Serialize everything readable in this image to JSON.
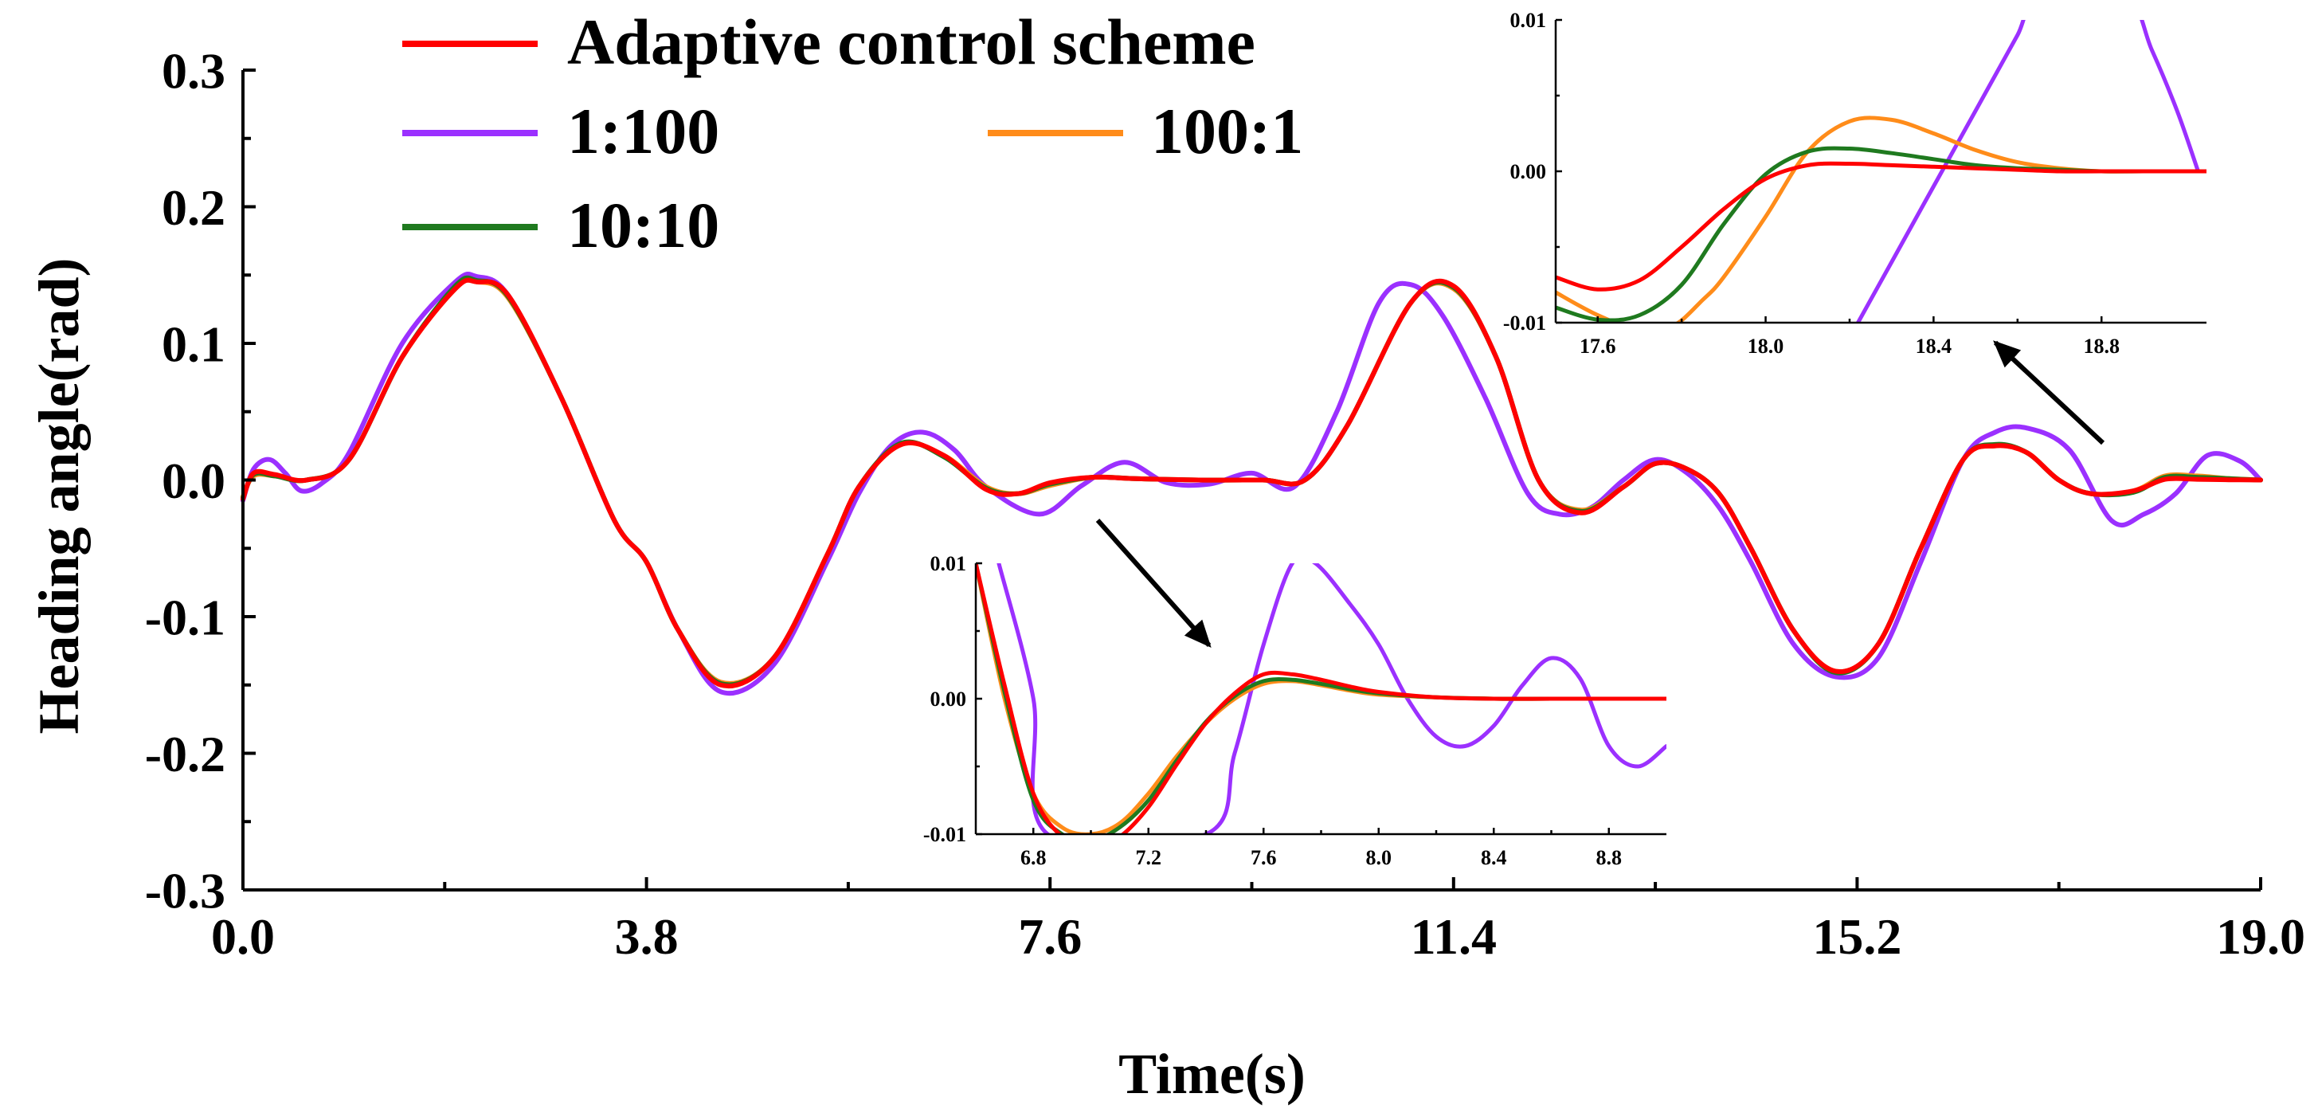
{
  "chart_data": [
    {
      "id": "main",
      "type": "line",
      "title": "",
      "xlabel": "Time(s)",
      "ylabel": "Heading angle(rad)",
      "xlim": [
        0,
        19
      ],
      "ylim": [
        -0.3,
        0.3
      ],
      "xticks": [
        0,
        3.8,
        7.6,
        11.4,
        15.2,
        19.0
      ],
      "xtick_labels": [
        "0.0",
        "3.8",
        "7.6",
        "11.4",
        "15.2",
        "19.0"
      ],
      "yticks": [
        -0.3,
        -0.2,
        -0.1,
        0.0,
        0.1,
        0.2,
        0.3
      ],
      "ytick_labels": [
        "-0.3",
        "-0.2",
        "-0.1",
        "0.0",
        "0.1",
        "0.2",
        "0.3"
      ],
      "legend": {
        "placement": "top-left",
        "entries": [
          {
            "name": "Adaptive control scheme",
            "color": "#ff0000"
          },
          {
            "name": "1:100",
            "color": "#9b30ff"
          },
          {
            "name": "100:1",
            "color": "#ff8c1a"
          },
          {
            "name": "10:10",
            "color": "#1f7a1f"
          }
        ]
      },
      "series": [
        {
          "name": "1:100",
          "color": "#9b30ff",
          "x": [
            0,
            0.1,
            0.25,
            0.4,
            0.55,
            0.75,
            1.0,
            1.5,
            2.0,
            2.2,
            2.5,
            3.0,
            3.5,
            3.8,
            4.1,
            4.5,
            5.0,
            5.5,
            5.8,
            6.1,
            6.4,
            6.7,
            7.0,
            7.5,
            7.9,
            8.3,
            8.7,
            9.1,
            9.5,
            9.9,
            10.3,
            10.7,
            11.0,
            11.3,
            11.7,
            12.1,
            12.4,
            12.7,
            13.0,
            13.3,
            13.6,
            13.9,
            14.2,
            14.6,
            15.0,
            15.4,
            15.8,
            16.2,
            16.5,
            16.8,
            17.2,
            17.6,
            17.9,
            18.2,
            18.5,
            18.8,
            19.0
          ],
          "y": [
            -0.015,
            0.008,
            0.015,
            0.005,
            -0.008,
            -0.002,
            0.02,
            0.1,
            0.145,
            0.149,
            0.135,
            0.06,
            -0.03,
            -0.06,
            -0.11,
            -0.155,
            -0.135,
            -0.06,
            -0.01,
            0.025,
            0.035,
            0.022,
            -0.005,
            -0.025,
            -0.004,
            0.013,
            -0.002,
            -0.003,
            0.005,
            -0.005,
            0.05,
            0.13,
            0.143,
            0.12,
            0.06,
            -0.01,
            -0.025,
            -0.02,
            0.0,
            0.015,
            0.005,
            -0.02,
            -0.06,
            -0.12,
            -0.144,
            -0.13,
            -0.06,
            0.015,
            0.035,
            0.038,
            0.022,
            -0.03,
            -0.025,
            -0.01,
            0.018,
            0.014,
            0.0
          ]
        },
        {
          "name": "100:1",
          "color": "#ff8c1a",
          "x": [
            0,
            0.1,
            0.3,
            0.6,
            1.0,
            1.5,
            2.0,
            2.2,
            2.5,
            3.0,
            3.5,
            3.8,
            4.1,
            4.5,
            5.0,
            5.5,
            5.8,
            6.2,
            6.6,
            7.0,
            7.3,
            7.6,
            8.0,
            8.4,
            9.0,
            9.6,
            10.0,
            10.4,
            11.0,
            11.4,
            11.8,
            12.2,
            12.6,
            13.0,
            13.3,
            13.6,
            13.9,
            14.2,
            14.6,
            15.0,
            15.4,
            15.8,
            16.2,
            16.5,
            16.8,
            17.1,
            17.4,
            17.8,
            18.1,
            18.4,
            18.7,
            19.0
          ],
          "y": [
            -0.012,
            0.003,
            0.003,
            0.0,
            0.015,
            0.09,
            0.14,
            0.145,
            0.133,
            0.06,
            -0.03,
            -0.06,
            -0.11,
            -0.148,
            -0.13,
            -0.055,
            -0.005,
            0.026,
            0.018,
            -0.005,
            -0.01,
            -0.004,
            0.002,
            0.001,
            0.0,
            0.0,
            0.0,
            0.04,
            0.13,
            0.14,
            0.09,
            0.0,
            -0.022,
            -0.005,
            0.012,
            0.008,
            -0.01,
            -0.05,
            -0.11,
            -0.14,
            -0.12,
            -0.05,
            0.015,
            0.025,
            0.02,
            0.0,
            -0.01,
            -0.008,
            0.003,
            0.003,
            0.001,
            0.0
          ]
        },
        {
          "name": "10:10",
          "color": "#1f7a1f",
          "x": [
            0,
            0.1,
            0.3,
            0.6,
            1.0,
            1.5,
            2.0,
            2.2,
            2.5,
            3.0,
            3.5,
            3.8,
            4.1,
            4.5,
            5.0,
            5.5,
            5.8,
            6.2,
            6.6,
            7.0,
            7.3,
            7.6,
            8.0,
            8.4,
            9.0,
            9.6,
            10.0,
            10.4,
            11.0,
            11.4,
            11.8,
            12.2,
            12.6,
            13.0,
            13.3,
            13.6,
            13.9,
            14.2,
            14.6,
            15.0,
            15.4,
            15.8,
            16.2,
            16.5,
            16.8,
            17.1,
            17.4,
            17.8,
            18.1,
            18.4,
            18.7,
            19.0
          ],
          "y": [
            -0.013,
            0.004,
            0.003,
            0.0,
            0.015,
            0.09,
            0.142,
            0.146,
            0.134,
            0.06,
            -0.03,
            -0.06,
            -0.11,
            -0.149,
            -0.13,
            -0.055,
            -0.005,
            0.027,
            0.017,
            -0.006,
            -0.01,
            -0.003,
            0.002,
            0.001,
            0.0,
            0.0,
            0.0,
            0.04,
            0.13,
            0.141,
            0.09,
            0.0,
            -0.023,
            -0.005,
            0.012,
            0.008,
            -0.01,
            -0.05,
            -0.11,
            -0.141,
            -0.12,
            -0.05,
            0.015,
            0.026,
            0.02,
            0.0,
            -0.01,
            -0.009,
            0.002,
            0.002,
            0.001,
            0.0
          ]
        },
        {
          "name": "Adaptive control scheme",
          "color": "#ff0000",
          "x": [
            0,
            0.1,
            0.3,
            0.6,
            1.0,
            1.5,
            2.0,
            2.2,
            2.5,
            3.0,
            3.5,
            3.8,
            4.1,
            4.5,
            5.0,
            5.5,
            5.8,
            6.2,
            6.6,
            7.0,
            7.3,
            7.6,
            8.0,
            8.4,
            9.0,
            9.6,
            10.0,
            10.4,
            11.0,
            11.4,
            11.8,
            12.2,
            12.6,
            13.0,
            13.3,
            13.6,
            13.9,
            14.2,
            14.6,
            15.0,
            15.4,
            15.8,
            16.2,
            16.5,
            16.8,
            17.1,
            17.4,
            17.8,
            18.1,
            18.4,
            18.7,
            19.0
          ],
          "y": [
            -0.014,
            0.005,
            0.004,
            0.0,
            0.015,
            0.09,
            0.14,
            0.145,
            0.135,
            0.06,
            -0.03,
            -0.06,
            -0.11,
            -0.15,
            -0.13,
            -0.055,
            -0.005,
            0.026,
            0.018,
            -0.007,
            -0.01,
            -0.002,
            0.002,
            0.001,
            0.0,
            0.0,
            0.0,
            0.04,
            0.13,
            0.142,
            0.09,
            0.0,
            -0.024,
            -0.005,
            0.012,
            0.008,
            -0.01,
            -0.05,
            -0.11,
            -0.14,
            -0.12,
            -0.05,
            0.015,
            0.025,
            0.02,
            0.0,
            -0.01,
            -0.008,
            0.0005,
            0.0005,
            0.0002,
            0.0
          ]
        }
      ]
    },
    {
      "id": "inset-1",
      "type": "line",
      "xlabel": "",
      "ylabel": "",
      "xlim": [
        6.6,
        9.0
      ],
      "ylim": [
        -0.01,
        0.01
      ],
      "xticks": [
        6.8,
        7.2,
        7.6,
        8.0,
        8.4,
        8.8
      ],
      "xtick_labels": [
        "6.8",
        "7.2",
        "7.6",
        "8.0",
        "8.4",
        "8.8"
      ],
      "yticks": [
        -0.01,
        0.0,
        0.01
      ],
      "ytick_labels": [
        "-0.01",
        "0.00",
        "0.01"
      ],
      "series": [
        {
          "name": "1:100",
          "color": "#9b30ff",
          "x": [
            6.68,
            6.8,
            6.85,
            7.4,
            7.5,
            7.6,
            7.7,
            7.78,
            7.9,
            8.0,
            8.1,
            8.2,
            8.3,
            8.4,
            8.5,
            8.6,
            8.7,
            8.8,
            8.9,
            9.0
          ],
          "y": [
            0.01,
            -0.0,
            -0.01,
            -0.01,
            -0.004,
            0.004,
            0.01,
            0.01,
            0.007,
            0.004,
            0.0,
            -0.0028,
            -0.0035,
            -0.002,
            0.001,
            0.003,
            0.0015,
            -0.0035,
            -0.005,
            -0.0035
          ]
        },
        {
          "name": "100:1",
          "color": "#ff8c1a",
          "x": [
            6.6,
            6.7,
            6.8,
            6.9,
            7.0,
            7.1,
            7.2,
            7.3,
            7.4,
            7.5,
            7.6,
            7.7,
            7.8,
            7.9,
            8.0,
            8.2,
            8.4,
            8.6,
            8.8,
            9.0
          ],
          "y": [
            0.01,
            0.0,
            -0.007,
            -0.0095,
            -0.01,
            -0.0092,
            -0.007,
            -0.0042,
            -0.0018,
            0.0,
            0.0011,
            0.0013,
            0.001,
            0.0006,
            0.0003,
            0.0001,
            0.0,
            0.0,
            0.0,
            0.0
          ]
        },
        {
          "name": "10:10",
          "color": "#1f7a1f",
          "x": [
            6.6,
            6.7,
            6.8,
            6.9,
            7.0,
            7.1,
            7.2,
            7.3,
            7.4,
            7.5,
            7.6,
            7.7,
            7.8,
            7.9,
            8.0,
            8.2,
            8.4,
            8.6,
            8.8,
            9.0
          ],
          "y": [
            0.01,
            0.0005,
            -0.0075,
            -0.01,
            -0.0105,
            -0.0095,
            -0.0075,
            -0.0045,
            -0.0017,
            0.0002,
            0.0013,
            0.0014,
            0.0011,
            0.0007,
            0.0004,
            0.0001,
            0.0,
            0.0,
            0.0,
            0.0
          ]
        },
        {
          "name": "Adaptive control scheme",
          "color": "#ff0000",
          "x": [
            6.6,
            6.7,
            6.8,
            6.9,
            7.0,
            7.1,
            7.2,
            7.3,
            7.4,
            7.5,
            7.6,
            7.7,
            7.8,
            7.9,
            8.0,
            8.2,
            8.4,
            8.6,
            8.8,
            9.0
          ],
          "y": [
            0.01,
            0.001,
            -0.007,
            -0.0102,
            -0.011,
            -0.0102,
            -0.008,
            -0.0048,
            -0.0018,
            0.0004,
            0.0018,
            0.0018,
            0.0014,
            0.0009,
            0.0005,
            0.0001,
            0.0,
            0.0,
            0.0,
            0.0
          ]
        }
      ]
    },
    {
      "id": "inset-2",
      "type": "line",
      "xlabel": "",
      "ylabel": "",
      "xlim": [
        17.5,
        19.05
      ],
      "ylim": [
        -0.01,
        0.01
      ],
      "xticks": [
        17.6,
        18.0,
        18.4,
        18.8
      ],
      "xtick_labels": [
        "17.6",
        "18.0",
        "18.4",
        "18.8"
      ],
      "yticks": [
        -0.01,
        0.0,
        0.01
      ],
      "ytick_labels": [
        "-0.01",
        "0.00",
        "0.01"
      ],
      "series": [
        {
          "name": "1:100",
          "color": "#9b30ff",
          "x": [
            18.22,
            18.3,
            18.38,
            18.46,
            18.54,
            18.6,
            18.66,
            18.85,
            18.92,
            18.98,
            19.03
          ],
          "y": [
            -0.01,
            -0.006,
            -0.002,
            0.002,
            0.006,
            0.009,
            0.012,
            0.012,
            0.008,
            0.004,
            0.0
          ]
        },
        {
          "name": "100:1",
          "color": "#ff8c1a",
          "x": [
            17.5,
            17.6,
            17.7,
            17.78,
            17.85,
            17.9,
            18.0,
            18.1,
            18.2,
            18.3,
            18.4,
            18.5,
            18.6,
            18.7,
            18.8,
            18.9,
            19.05
          ],
          "y": [
            -0.008,
            -0.0095,
            -0.0105,
            -0.0102,
            -0.0085,
            -0.007,
            -0.003,
            0.0013,
            0.0033,
            0.0034,
            0.0025,
            0.0014,
            0.0006,
            0.0002,
            0.0,
            0.0,
            0.0
          ]
        },
        {
          "name": "10:10",
          "color": "#1f7a1f",
          "x": [
            17.5,
            17.6,
            17.7,
            17.8,
            17.9,
            18.0,
            18.1,
            18.2,
            18.3,
            18.4,
            18.5,
            18.6,
            18.7,
            18.8,
            18.9,
            19.05
          ],
          "y": [
            -0.009,
            -0.0098,
            -0.0095,
            -0.0075,
            -0.0035,
            -0.0002,
            0.0013,
            0.0015,
            0.0012,
            0.0008,
            0.0004,
            0.0002,
            0.0001,
            0.0,
            0.0,
            0.0
          ]
        },
        {
          "name": "Adaptive control scheme",
          "color": "#ff0000",
          "x": [
            17.5,
            17.6,
            17.7,
            17.8,
            17.9,
            18.0,
            18.1,
            18.2,
            18.3,
            18.4,
            18.5,
            18.6,
            18.7,
            18.8,
            18.9,
            19.05
          ],
          "y": [
            -0.007,
            -0.0078,
            -0.0072,
            -0.005,
            -0.0025,
            -0.0005,
            0.0004,
            0.0005,
            0.0004,
            0.0003,
            0.0002,
            0.0001,
            0.0,
            0.0,
            0.0,
            0.0
          ]
        }
      ]
    }
  ]
}
